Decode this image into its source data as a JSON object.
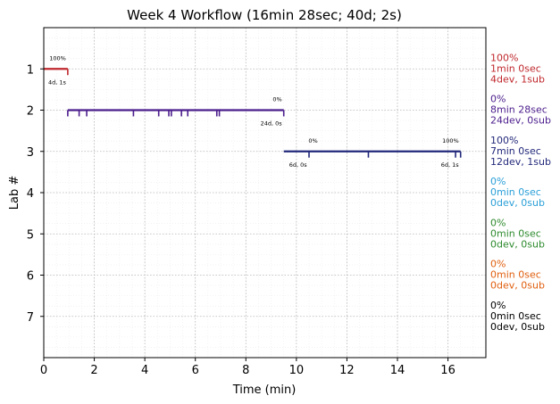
{
  "chart_data": {
    "type": "timeline",
    "title": "Week 4 Workflow (16min 28sec; 40d; 2s)",
    "xlabel": "Time (min)",
    "ylabel": "Lab #",
    "xlim": [
      0,
      17.5
    ],
    "ylim": [
      8,
      0
    ],
    "grid": true,
    "x_ticks": [
      0,
      2,
      4,
      6,
      8,
      10,
      12,
      14,
      16
    ],
    "y_ticks": [
      1,
      2,
      3,
      4,
      5,
      6,
      7
    ],
    "series": [
      {
        "lab": 1,
        "color": "#c0282d",
        "start": 0,
        "end": 0.95,
        "events": [
          0.95
        ],
        "start_pct": "",
        "end_pct": "100%",
        "count_label": "4d, 1s",
        "side_lines": [
          "100%",
          "1min 0sec",
          "4dev, 1sub"
        ]
      },
      {
        "lab": 2,
        "color": "#4b1d8c",
        "start": 0.95,
        "end": 9.5,
        "events": [
          0.95,
          1.4,
          1.7,
          3.55,
          4.55,
          4.95,
          5.05,
          5.45,
          5.7,
          6.85,
          6.95,
          9.5
        ],
        "start_pct": "",
        "end_pct": "0%",
        "count_label": "24d, 0s",
        "side_lines": [
          "0%",
          "8min 28sec",
          "24dev, 0sub"
        ]
      },
      {
        "lab": 3,
        "color": "#22287a",
        "start": 9.5,
        "end": 16.5,
        "events": [
          10.5,
          12.85,
          16.3,
          16.5
        ],
        "start_pct": "0%",
        "end_pct": "100%",
        "start_count_label": "6d, 0s",
        "count_label": "6d, 1s",
        "side_lines": [
          "100%",
          "7min 0sec",
          "12dev, 1sub"
        ]
      },
      {
        "lab": 4,
        "color": "#2a9fd8",
        "side_lines": [
          "0%",
          "0min 0sec",
          "0dev, 0sub"
        ]
      },
      {
        "lab": 5,
        "color": "#2e8b2e",
        "side_lines": [
          "0%",
          "0min 0sec",
          "0dev, 0sub"
        ]
      },
      {
        "lab": 6,
        "color": "#e06010",
        "side_lines": [
          "0%",
          "0min 0sec",
          "0dev, 0sub"
        ]
      },
      {
        "lab": 7,
        "color": "#000000",
        "side_lines": [
          "0%",
          "0min 0sec",
          "0dev, 0sub"
        ]
      }
    ]
  }
}
